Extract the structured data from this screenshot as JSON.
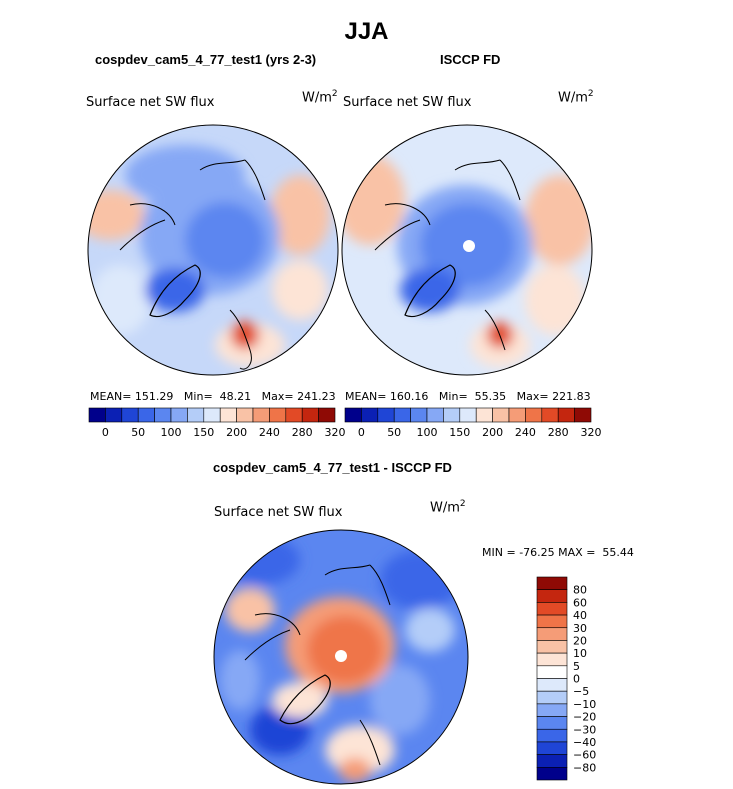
{
  "page": {
    "season_title": "JJA"
  },
  "palette": {
    "abs": [
      "#00008b",
      "#0b20b4",
      "#1f45d6",
      "#3a66e8",
      "#5b86f0",
      "#86a8f5",
      "#b4cdf8",
      "#dde9fb",
      "#fde4d6",
      "#f9c2a6",
      "#f59c77",
      "#ef7448",
      "#e24a26",
      "#c4260f",
      "#8f0a05"
    ],
    "diff": [
      "#00008b",
      "#0b20b4",
      "#1f45d6",
      "#3a66e8",
      "#5b86f0",
      "#86a8f5",
      "#b4cdf8",
      "#dde9fb",
      "#ffffff",
      "#fde4d6",
      "#f9c2a6",
      "#f59c77",
      "#ef7448",
      "#e24a26",
      "#c4260f",
      "#8f0a05"
    ]
  },
  "chart_data": [
    {
      "type": "heatmap",
      "projection": "north-polar-stereographic",
      "title": "cospdev_cam5_4_77_test1 (yrs 2-3)",
      "field": "Surface net SW flux",
      "units_base": "W/m",
      "units_exp": "2",
      "stats": {
        "mean_label": "MEAN=",
        "mean": "151.29",
        "min_label": "Min=",
        "min": "48.21",
        "max_label": "Max=",
        "max": "241.23"
      },
      "colorbar_ticks": [
        "0",
        "50",
        "100",
        "150",
        "200",
        "240",
        "280",
        "320"
      ]
    },
    {
      "type": "heatmap",
      "projection": "north-polar-stereographic",
      "title": "ISCCP FD",
      "field": "Surface net SW flux",
      "units_base": "W/m",
      "units_exp": "2",
      "stats": {
        "mean_label": "MEAN=",
        "mean": "160.16",
        "min_label": "Min=",
        "min": "55.35",
        "max_label": "Max=",
        "max": "221.83"
      },
      "colorbar_ticks": [
        "0",
        "50",
        "100",
        "150",
        "200",
        "240",
        "280",
        "320"
      ]
    },
    {
      "type": "heatmap",
      "projection": "north-polar-stereographic",
      "title": "cospdev_cam5_4_77_test1 - ISCCP FD",
      "field": "Surface net SW flux",
      "units_base": "W/m",
      "units_exp": "2",
      "stats": {
        "min_label": "MIN =",
        "min": "-76.25",
        "max_label": "MAX =",
        "max": "55.44"
      },
      "colorbar_ticks": [
        "80",
        "60",
        "40",
        "30",
        "20",
        "10",
        "5",
        "0",
        "−5",
        "−10",
        "−20",
        "−30",
        "−40",
        "−60",
        "−80"
      ]
    }
  ]
}
